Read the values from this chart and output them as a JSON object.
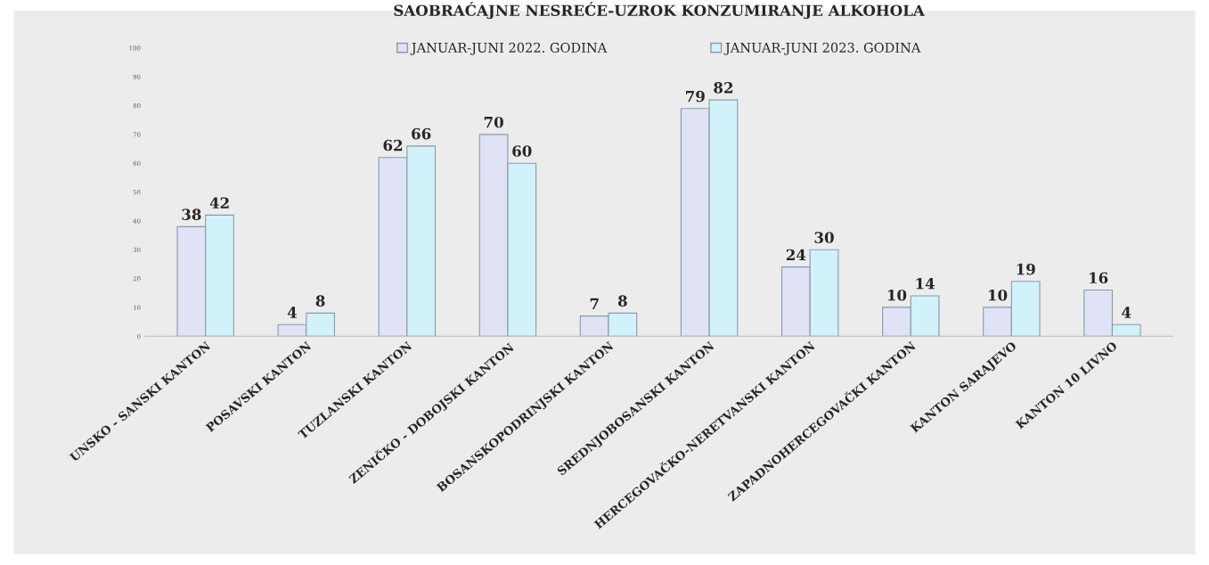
{
  "chart_data": {
    "type": "bar",
    "title": "SAOBRAĆAJNE NESREĆE-UZROK KONZUMIRANJE ALKOHOLA",
    "categories": [
      "UNSKO - SANSKI KANTON",
      "POSAVSKI KANTON",
      "TUZLANSKI KANTON",
      "ZENIČKO - DOBOJSKI KANTON",
      "BOSANSKOPODRINJSKI KANTON",
      "SREDNJOBOSANSKI KANTON",
      "HERCEGOVAČKO-NERETVANSKI KANTON",
      "ZAPADNOHERCEGOVAČKI KANTON",
      "KANTON SARAJEVO",
      "KANTON 10 LIVNO"
    ],
    "series": [
      {
        "name": "JANUAR-JUNI 2022. GODINA",
        "color": "#dfe3f5",
        "values": [
          38,
          4,
          62,
          70,
          7,
          79,
          24,
          10,
          10,
          16
        ]
      },
      {
        "name": "JANUAR-JUNI 2023. GODINA",
        "color": "#d2f2fb",
        "values": [
          42,
          8,
          66,
          60,
          8,
          82,
          30,
          14,
          19,
          4
        ]
      }
    ],
    "ylim": [
      0,
      100
    ],
    "yticks": [
      0,
      10,
      20,
      30,
      40,
      50,
      60,
      70,
      80,
      90,
      100
    ],
    "data_labels": true,
    "legend": "top",
    "grid": false
  }
}
